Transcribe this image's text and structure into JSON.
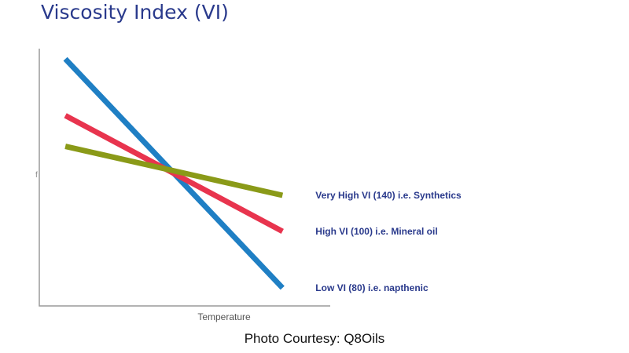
{
  "chart_data": {
    "type": "line",
    "title": "Viscosity Index (VI)",
    "xlabel": "Temperature",
    "ylabel": "",
    "ytick_mark": "f",
    "x": [
      0,
      1
    ],
    "xlim": [
      -0.12,
      1.22
    ],
    "ylim": [
      0,
      1
    ],
    "grid": false,
    "legend": "inline-right",
    "series": [
      {
        "name": "Low VI (80) i.e. napthenic",
        "values": [
          0.96,
          0.07
        ],
        "color": "#1f7fc4"
      },
      {
        "name": "High VI (100) i.e. Mineral oil",
        "values": [
          0.74,
          0.29
        ],
        "color": "#e8344e"
      },
      {
        "name": "Very High VI (140) i.e. Synthetics",
        "values": [
          0.62,
          0.43
        ],
        "color": "#8a9a18"
      }
    ]
  },
  "caption": "Photo Courtesy: Q8Oils"
}
